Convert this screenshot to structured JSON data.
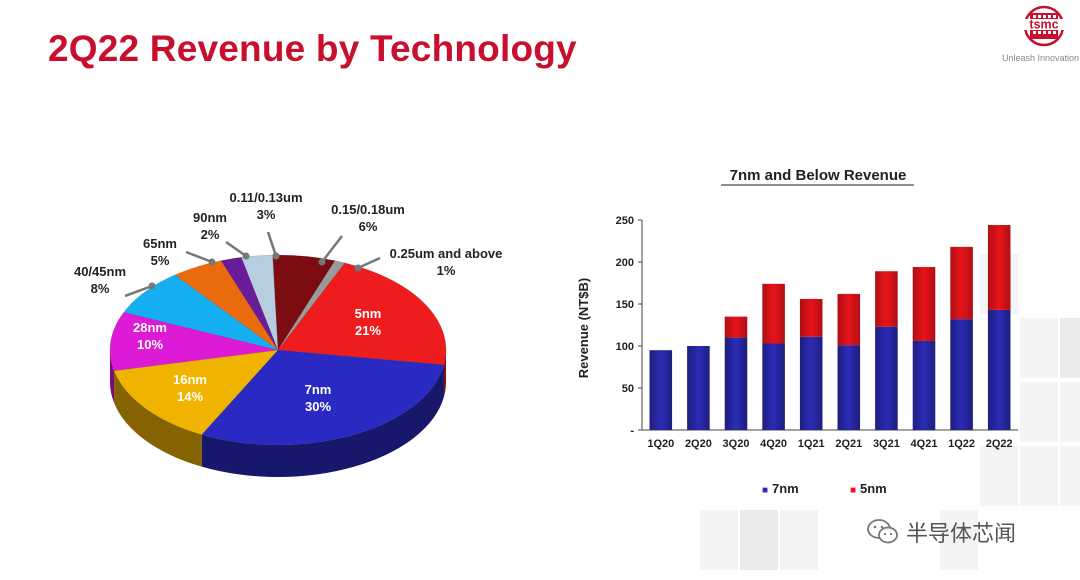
{
  "slide": {
    "title": "2Q22 Revenue by Technology",
    "logo_text": "tsmc",
    "logo_tagline": "Unleash Innovation",
    "watermark_text": "半导体芯闻"
  },
  "colors": {
    "title": "#c8102e",
    "series_7nm": "#2b2bb5",
    "series_5nm": "#e8141a"
  },
  "chart_data": [
    {
      "type": "pie",
      "title": "",
      "slices": [
        {
          "name": "5nm",
          "value": 21,
          "label": "5nm",
          "pct": "21%",
          "color": "#ee1c1c"
        },
        {
          "name": "7nm",
          "value": 30,
          "label": "7nm",
          "pct": "30%",
          "color": "#2a2ac2"
        },
        {
          "name": "16nm",
          "value": 14,
          "label": "16nm",
          "pct": "14%",
          "color": "#f0b400"
        },
        {
          "name": "28nm",
          "value": 10,
          "label": "28nm",
          "pct": "10%",
          "color": "#dd1ad6"
        },
        {
          "name": "40/45nm",
          "value": 8,
          "label": "40/45nm",
          "pct": "8%",
          "color": "#15aef0"
        },
        {
          "name": "65nm",
          "value": 5,
          "label": "65nm",
          "pct": "5%",
          "color": "#ea6a0e"
        },
        {
          "name": "90nm",
          "value": 2,
          "label": "90nm",
          "pct": "2%",
          "color": "#6a1b9a"
        },
        {
          "name": "0.11/0.13um",
          "value": 3,
          "label": "0.11/0.13um",
          "pct": "3%",
          "color": "#b7cde0"
        },
        {
          "name": "0.15/0.18um",
          "value": 6,
          "label": "0.15/0.18um",
          "pct": "6%",
          "color": "#7a0c12"
        },
        {
          "name": "0.25um and above",
          "value": 1,
          "label": "0.25um and above",
          "pct": "1%",
          "color": "#9a9a9a"
        }
      ]
    },
    {
      "type": "bar",
      "stacked": true,
      "title": "7nm and Below Revenue",
      "xlabel": "",
      "ylabel": "Revenue (NT$B)",
      "ylim": [
        0,
        250
      ],
      "yticks": [
        "-",
        "50",
        "100",
        "150",
        "200",
        "250"
      ],
      "categories": [
        "1Q20",
        "2Q20",
        "3Q20",
        "4Q20",
        "1Q21",
        "2Q21",
        "3Q21",
        "4Q21",
        "1Q22",
        "2Q22"
      ],
      "series": [
        {
          "name": "7nm",
          "color": "#2b2bb5",
          "values": [
            95,
            100,
            110,
            103,
            111,
            101,
            123,
            106,
            132,
            143
          ]
        },
        {
          "name": "5nm",
          "color": "#e8141a",
          "values": [
            0,
            0,
            25,
            71,
            45,
            61,
            66,
            88,
            86,
            101
          ]
        }
      ],
      "legend": [
        {
          "marker": "■",
          "name": "7nm",
          "color": "#2b2bb5"
        },
        {
          "marker": "■",
          "name": "5nm",
          "color": "#e8141a"
        }
      ],
      "legend_position": "bottom"
    }
  ]
}
